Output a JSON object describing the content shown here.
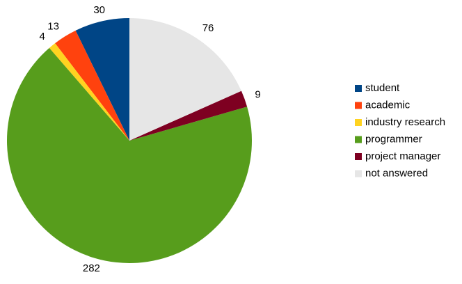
{
  "chart_data": {
    "type": "pie",
    "categories": [
      "student",
      "academic",
      "industry research",
      "programmer",
      "project manager",
      "not answered"
    ],
    "values": [
      30,
      13,
      4,
      282,
      9,
      76
    ],
    "colors": [
      "#004586",
      "#ff420e",
      "#ffd320",
      "#579d1c",
      "#7e0021",
      "#e6e6e6"
    ],
    "legend": "right"
  }
}
